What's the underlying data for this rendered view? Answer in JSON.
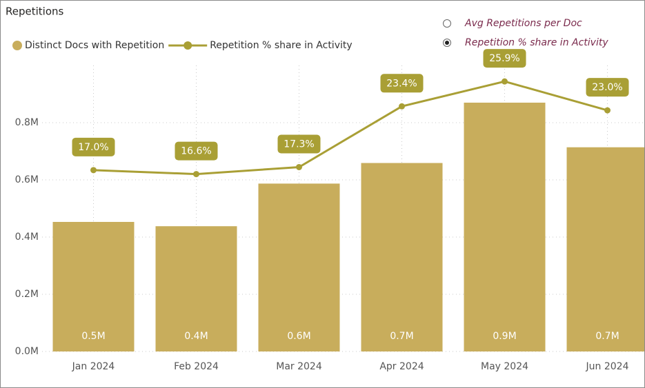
{
  "chart_data": {
    "type": "bar-line",
    "title": "Repetitions",
    "categories": [
      "Jan 2024",
      "Feb 2024",
      "Mar 2024",
      "Apr 2024",
      "May 2024",
      "Jun 2024"
    ],
    "series": [
      {
        "name": "Distinct Docs with Repetition",
        "type": "bar",
        "color": "#c8ad5c",
        "values": [
          453000,
          438000,
          587000,
          659000,
          870000,
          714000
        ],
        "value_labels": [
          "0.5M",
          "0.4M",
          "0.6M",
          "0.7M",
          "0.9M",
          "0.7M"
        ]
      },
      {
        "name": "Repetition % share in Activity",
        "type": "line",
        "axis": "y2",
        "color": "#a99f35",
        "values": [
          17.0,
          16.6,
          17.3,
          23.4,
          25.9,
          23.0
        ],
        "value_labels": [
          "17.0%",
          "16.6%",
          "17.3%",
          "23.4%",
          "25.9%",
          "23.0%"
        ]
      }
    ],
    "ylim": [
      0,
      1000000
    ],
    "yticks": [
      {
        "value": 0,
        "label": "0.0M"
      },
      {
        "value": 200000,
        "label": "0.2M"
      },
      {
        "value": 400000,
        "label": "0.4M"
      },
      {
        "value": 600000,
        "label": "0.6M"
      },
      {
        "value": 800000,
        "label": "0.8M"
      }
    ],
    "y2lim": [
      -1.2,
      27.5
    ],
    "grid": true,
    "toggle": {
      "options": [
        "Avg Repetitions per Doc",
        "Repetition % share in Activity"
      ],
      "selected": 1
    }
  }
}
